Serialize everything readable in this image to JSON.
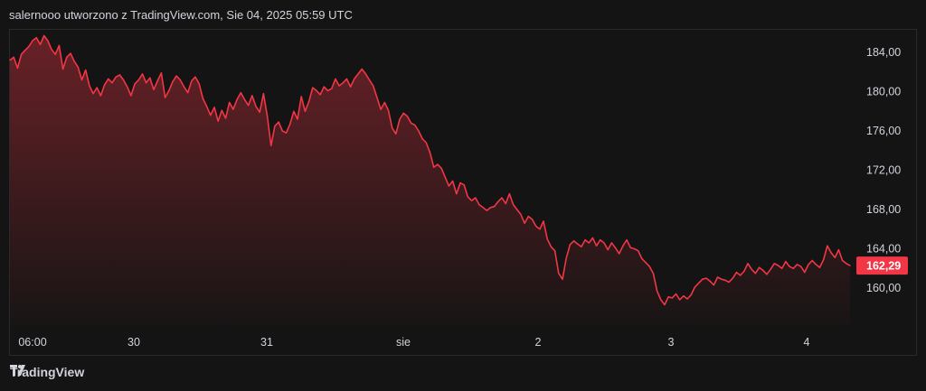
{
  "header": {
    "text": "salernooo utworzono z TradingView.com, Sie 04, 2025 05:59 UTC"
  },
  "footer": {
    "brand": "TradingView",
    "logo_icon": "tradingview-logo-icon"
  },
  "colors": {
    "line": "#f23645",
    "background": "#141414",
    "badge": "#f23645"
  },
  "chart_data": {
    "type": "area",
    "x_ticks": [
      "06:00",
      "30",
      "31",
      "sie",
      "2",
      "3",
      "4"
    ],
    "y_ticks": [
      "184,00",
      "180,00",
      "176,00",
      "172,00",
      "168,00",
      "164,00",
      "160,00"
    ],
    "ylim": [
      157.5,
      186.5
    ],
    "last_value_label": "162,29",
    "series": [
      {
        "values": [
          183.2,
          183.5,
          182.4,
          183.8,
          184.2,
          184.6,
          185.2,
          185.5,
          184.8,
          185.7,
          185.2,
          184.3,
          183.8,
          184.7,
          182.3,
          183.5,
          183.9,
          183.1,
          182.5,
          181.2,
          182.2,
          180.6,
          179.8,
          180.4,
          179.6,
          180.7,
          181.3,
          180.9,
          181.5,
          181.7,
          181.2,
          180.5,
          179.6,
          180.8,
          181.2,
          181.8,
          180.9,
          181.4,
          180.2,
          181.1,
          181.9,
          179.4,
          180.1,
          181.0,
          181.6,
          181.2,
          180.5,
          179.9,
          181.1,
          181.5,
          180.8,
          179.3,
          178.5,
          177.6,
          178.4,
          177.0,
          178.1,
          177.3,
          178.9,
          178.2,
          179.2,
          179.9,
          179.2,
          178.6,
          179.6,
          178.5,
          177.9,
          179.8,
          177.5,
          174.5,
          176.5,
          176.9,
          176.0,
          175.8,
          176.7,
          178.0,
          177.2,
          179.5,
          178.0,
          179.0,
          180.4,
          180.1,
          179.7,
          180.5,
          180.1,
          180.3,
          181.3,
          180.6,
          180.9,
          181.3,
          180.5,
          181.3,
          181.8,
          182.3,
          181.8,
          181.2,
          180.6,
          179.4,
          178.2,
          178.9,
          178.1,
          176.3,
          175.7,
          177.2,
          177.8,
          177.5,
          176.8,
          176.6,
          176.0,
          175.2,
          174.8,
          173.8,
          172.3,
          172.6,
          172.2,
          171.3,
          170.4,
          170.9,
          169.6,
          170.7,
          170.5,
          169.3,
          168.9,
          169.2,
          168.5,
          168.2,
          167.9,
          168.2,
          168.3,
          168.8,
          169.2,
          168.6,
          169.6,
          168.5,
          168.0,
          167.5,
          166.6,
          167.3,
          167.0,
          166.3,
          166.0,
          166.8,
          165.0,
          164.2,
          163.8,
          161.5,
          160.9,
          163.0,
          164.4,
          164.8,
          164.5,
          164.2,
          164.9,
          164.6,
          165.1,
          164.3,
          164.9,
          164.6,
          163.9,
          164.6,
          164.1,
          163.5,
          164.3,
          164.9,
          164.1,
          164.0,
          163.8,
          163.0,
          162.6,
          162.2,
          161.5,
          159.7,
          158.8,
          158.3,
          159.1,
          159.0,
          159.4,
          158.8,
          159.2,
          158.9,
          159.3,
          160.1,
          160.5,
          160.9,
          161.0,
          160.7,
          160.3,
          161.1,
          160.9,
          160.8,
          160.6,
          161.0,
          161.6,
          161.3,
          161.7,
          162.5,
          161.9,
          161.5,
          162.1,
          161.8,
          161.4,
          161.9,
          162.5,
          162.3,
          162.0,
          162.7,
          162.2,
          162.0,
          162.4,
          162.2,
          161.6,
          162.4,
          162.8,
          162.4,
          162.1,
          162.9,
          164.3,
          163.6,
          163.1,
          163.9,
          162.8,
          162.5,
          162.29
        ]
      }
    ]
  }
}
